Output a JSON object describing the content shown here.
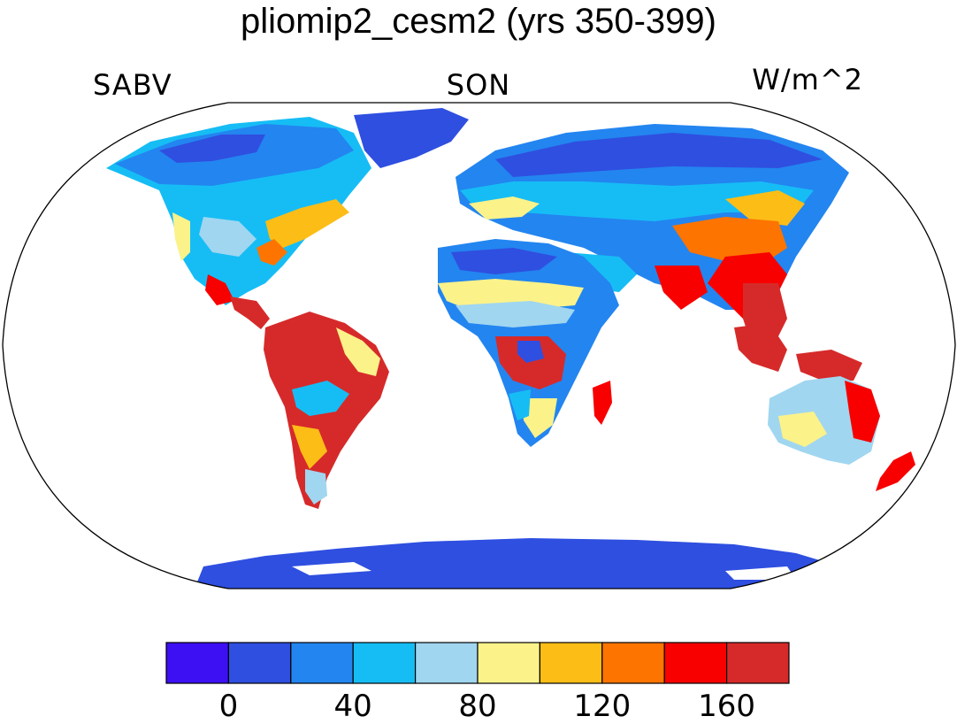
{
  "title": "pliomip2_cesm2 (yrs 350-399)",
  "left_string": "SABV",
  "center_string": "SON",
  "right_string": "W/m^2",
  "colorbar": {
    "colors": [
      "#3d10f3",
      "#2f4fe0",
      "#2385f0",
      "#16bdf5",
      "#a0d6f0",
      "#fbf28a",
      "#fcbd17",
      "#fd7400",
      "#f80000",
      "#d62a2a"
    ],
    "labels": [
      "0",
      "40",
      "80",
      "120",
      "160"
    ]
  },
  "colors": {
    "ocean": "#ffffff",
    "coastline": "#000000",
    "ice_sheet": "#2f4fe0"
  }
}
